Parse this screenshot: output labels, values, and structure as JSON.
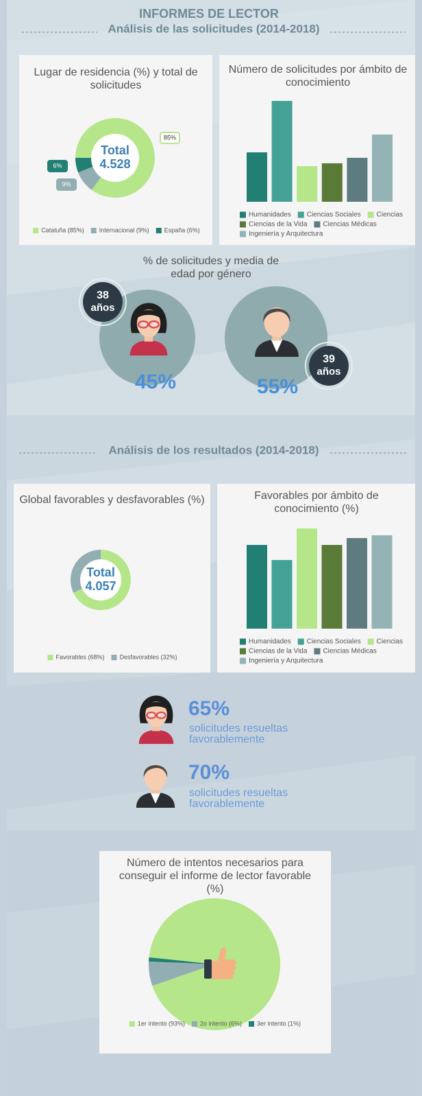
{
  "header": {
    "title": "INFORMES DE LECTOR",
    "subtitle": "Análisis de las solicitudes (2014-2018)"
  },
  "chart_data": [
    {
      "type": "pie",
      "title": "Lugar de residencia (%) y total de solicitudes",
      "center_title": "Total",
      "center_value": "4.528",
      "categories": [
        "Cataluña (85%)",
        "Internacional (9%)",
        "España (6%)"
      ],
      "values": [
        85,
        9,
        6
      ],
      "value_labels": [
        "85%",
        "9%",
        "6%"
      ],
      "colors": [
        "#b5e68a",
        "#93aeb3",
        "#217f73"
      ]
    },
    {
      "type": "bar",
      "title": "Número de solicitudes por ámbito de conocimiento",
      "categories": [
        "Humanidades",
        "Ciencias Sociales",
        "Ciencias",
        "Ciencias de la Vida",
        "Ciencias Médicas",
        "Ingeniería y Arquitectura"
      ],
      "values": [
        667,
        1361,
        481,
        519,
        593,
        907
      ],
      "colors": [
        "#217f73",
        "#43a295",
        "#b5e68a",
        "#5a7a38",
        "#5e7c80",
        "#93b3b5"
      ]
    },
    {
      "type": "pie",
      "title": "Global favorables y desfavorables (%)",
      "center_title": "Total",
      "center_value": "4.057",
      "categories": [
        "Favorables (68%)",
        "Desfavorables (32%)"
      ],
      "values": [
        68,
        32
      ],
      "colors": [
        "#b5e68a",
        "#93aeb3"
      ]
    },
    {
      "type": "bar",
      "title": "Favorables por ámbito de conocimiento (%)",
      "categories": [
        "Humanidades",
        "Ciencias Sociales",
        "Ciencias",
        "Ciencias de la Vida",
        "Ciencias Médicas",
        "Ingeniería y Arquitectura"
      ],
      "values": [
        61,
        50,
        73,
        61,
        66,
        68
      ],
      "colors": [
        "#217f73",
        "#43a295",
        "#b5e68a",
        "#5a7a38",
        "#5e7c80",
        "#93b3b5"
      ]
    },
    {
      "type": "pie",
      "title": "Número de intentos necesarios para conseguir el informe de lector favorable (%)",
      "categories": [
        "1er intento (93%)",
        "2o intento (6%)",
        "3er intento (1%)"
      ],
      "values": [
        93,
        6,
        1
      ],
      "colors": [
        "#b5e68a",
        "#93aeb3",
        "#217f73"
      ]
    }
  ],
  "gender": {
    "title": "% de solicitudes y media de edad por género",
    "women": {
      "age": "38",
      "age_unit": "años",
      "percent": "45%"
    },
    "men": {
      "age": "39",
      "age_unit": "años",
      "percent": "55%"
    }
  },
  "results_title": "Análisis de los resultados (2014-2018)",
  "favorable_by_gender": {
    "women": {
      "percent": "65%",
      "text": "solicitudes resueltas favorablemente"
    },
    "men": {
      "percent": "70%",
      "text": "solicitudes resueltas favorablemente"
    }
  }
}
